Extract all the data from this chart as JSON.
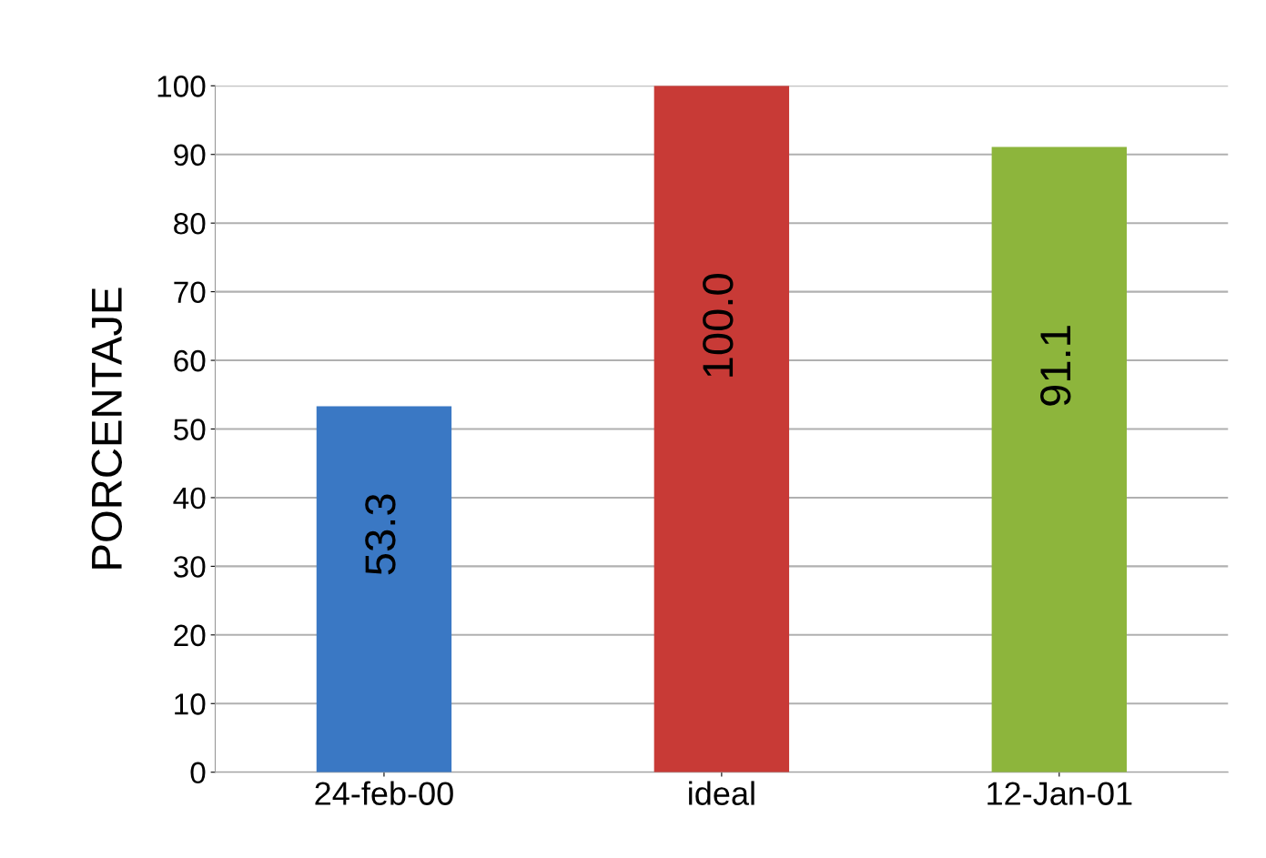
{
  "chart_data": {
    "type": "bar",
    "ylabel": "PORCENTAJE",
    "categories": [
      "24-feb-00",
      "ideal",
      "12-Jan-01"
    ],
    "values": [
      53.3,
      100.0,
      91.1
    ],
    "colors": [
      "#3a78c4",
      "#c83a36",
      "#8db53c"
    ],
    "value_labels": [
      "53.3",
      "100.0",
      "91.1"
    ],
    "ylim": [
      0,
      100
    ],
    "yticks": [
      0,
      10,
      20,
      30,
      40,
      50,
      60,
      70,
      80,
      90,
      100
    ],
    "grid": "y"
  }
}
